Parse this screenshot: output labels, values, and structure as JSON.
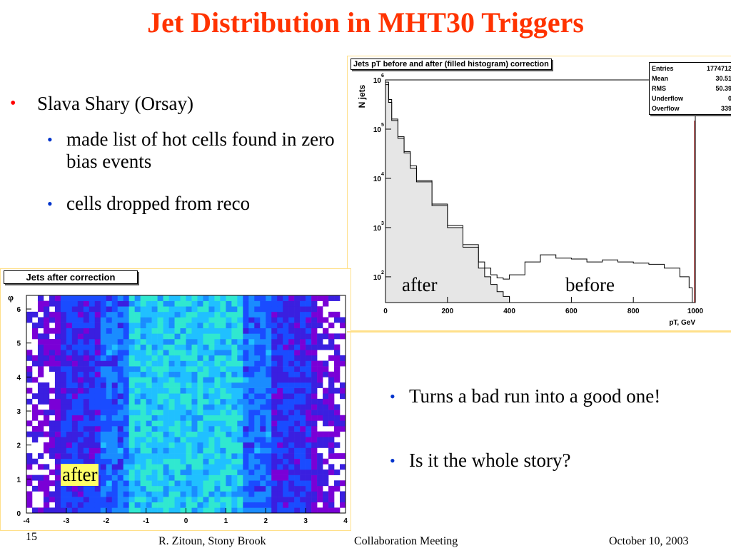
{
  "slide": {
    "title": "Jet Distribution in MHT30 Triggers",
    "page_number": "15",
    "footer_left": "R. Zitoun, Stony Brook",
    "footer_center": "Collaboration Meeting",
    "footer_right": "October 10, 2003"
  },
  "bullets_top": {
    "main": "Slava Shary (Orsay)",
    "sub": [
      "made list of hot cells found in zero bias events",
      "cells dropped from reco"
    ]
  },
  "bullets_bottom": [
    "Turns a bad run into a good one!",
    "Is it the whole story?"
  ],
  "colors": {
    "title": "#ff3300",
    "bullet_red": "#ff0000",
    "bullet_blue": "#0033cc",
    "label_bg": "#ffff66"
  },
  "histogram": {
    "title": "Jets pT before and after (filled histogram) correction",
    "xlabel": "pT, GeV",
    "ylabel": "N jets",
    "x_ticks": [
      "0",
      "200",
      "400",
      "600",
      "800",
      "1000"
    ],
    "y_ticks": [
      "10",
      "10",
      "10",
      "10",
      "10"
    ],
    "y_tick_exps": [
      "2",
      "3",
      "4",
      "5",
      "6"
    ],
    "label_after": "after",
    "label_before": "before",
    "stats": [
      {
        "name": "Entries",
        "value": "1774712"
      },
      {
        "name": "Mean",
        "value": "30.51"
      },
      {
        "name": "RMS",
        "value": "50.39"
      },
      {
        "name": "Underflow",
        "value": "0"
      },
      {
        "name": "Overflow",
        "value": "339"
      }
    ]
  },
  "chart_data": [
    {
      "type": "area",
      "title": "Jets pT before and after (filled histogram) correction",
      "xlabel": "pT, GeV",
      "ylabel": "N jets",
      "xlim": [
        0,
        1000
      ],
      "ylim": [
        30,
        1000000
      ],
      "log_y": true,
      "series": [
        {
          "name": "before",
          "x": [
            0,
            10,
            20,
            40,
            60,
            80,
            100,
            150,
            200,
            250,
            300,
            320,
            340,
            360,
            380,
            400,
            450,
            500,
            550,
            600,
            650,
            700,
            750,
            800,
            850,
            900,
            950,
            980
          ],
          "y": [
            900000,
            400000,
            160000,
            70000,
            35000,
            18000,
            9000,
            3000,
            1100,
            450,
            200,
            150,
            110,
            95,
            90,
            110,
            200,
            280,
            240,
            230,
            200,
            220,
            200,
            190,
            180,
            150,
            100,
            60
          ]
        },
        {
          "name": "after",
          "x": [
            0,
            10,
            20,
            40,
            60,
            80,
            100,
            150,
            200,
            250,
            300,
            320,
            340,
            360,
            380,
            400
          ],
          "y": [
            800000,
            350000,
            150000,
            65000,
            33000,
            16000,
            8500,
            2800,
            1000,
            400,
            150,
            100,
            70,
            50,
            40,
            30
          ]
        }
      ]
    },
    {
      "type": "heatmap",
      "title": "Jets after correction",
      "xlabel": "",
      "ylabel": "φ",
      "x_ticks": [
        "-4",
        "-3",
        "-2",
        "-1",
        "0",
        "1",
        "2",
        "3",
        "4"
      ],
      "y_ticks": [
        "0",
        "1",
        "2",
        "3",
        "4",
        "5",
        "6"
      ],
      "xlim": [
        -4,
        4
      ],
      "ylim": [
        0,
        6.4
      ],
      "label": "after"
    }
  ]
}
